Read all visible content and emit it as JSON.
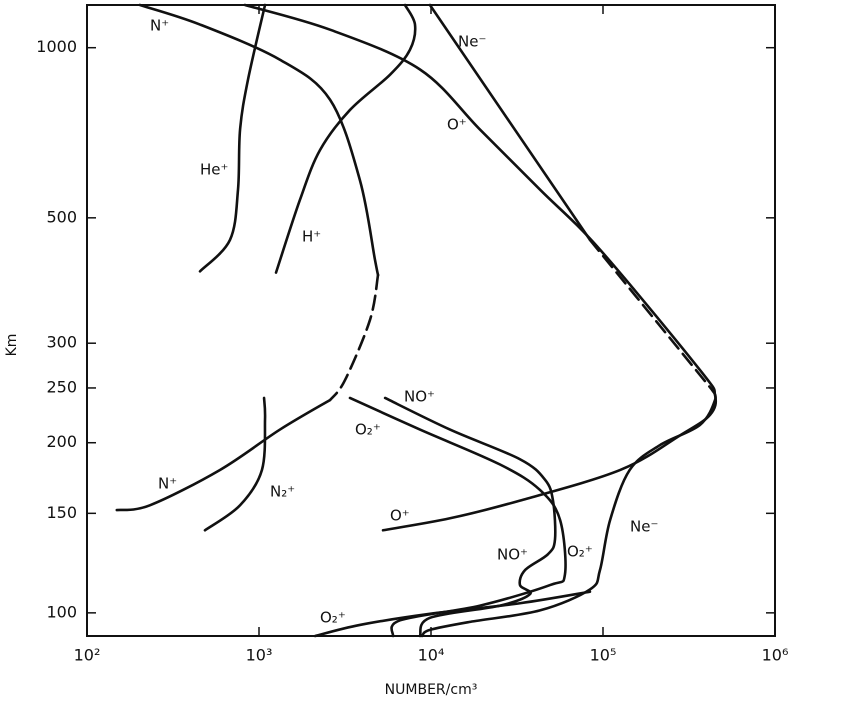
{
  "chart_data": {
    "type": "line",
    "x_label": "NUMBER/cm³",
    "y_label": "Km",
    "x_scale": "log",
    "y_scale": "log",
    "xlim": [
      100,
      1000000
    ],
    "ylim": [
      91,
      1190
    ],
    "xticks": [
      {
        "value": 100,
        "label": "10²"
      },
      {
        "value": 1000,
        "label": "10³"
      },
      {
        "value": 10000,
        "label": "10⁴"
      },
      {
        "value": 100000,
        "label": "10⁵"
      },
      {
        "value": 1000000,
        "label": "10⁶"
      }
    ],
    "yticks": [
      100,
      150,
      200,
      250,
      300,
      500,
      1000
    ],
    "color": "#111111",
    "series": [
      {
        "labels": [
          "He⁺"
        ],
        "x": [
          454,
          678,
          755,
          776,
          863,
          1084
        ],
        "y": [
          402,
          457,
          561,
          716,
          878,
          1190
        ]
      },
      {
        "labels": [
          "H⁺"
        ],
        "x": [
          1256,
          1730,
          2264,
          3380,
          5780,
          7550,
          8070,
          7060
        ],
        "y": [
          400,
          538,
          659,
          776,
          896,
          992,
          1099,
          1190
        ]
      },
      {
        "labels": [
          "N⁺"
        ],
        "x": [
          203,
          454,
          1324,
          2590,
          3860,
          4720,
          4920
        ],
        "y": [
          1190,
          1099,
          952,
          809,
          583,
          422,
          396
        ]
      },
      {
        "labels": [],
        "line_style": "dashed",
        "x": [
          4920,
          4420,
          3160,
          2590
        ],
        "y": [
          396,
          330,
          258,
          238
        ]
      },
      {
        "labels": [
          "N⁺"
        ],
        "x": [
          2590,
          1324,
          593,
          232,
          149
        ],
        "y": [
          238,
          211,
          179,
          155,
          152
        ]
      },
      {
        "labels": [
          "N₂⁺"
        ],
        "x": [
          485,
          776,
          1040,
          1084,
          1070
        ],
        "y": [
          140,
          155,
          179,
          220,
          240
        ]
      },
      {
        "labels": [
          "Ne⁻"
        ],
        "x": [
          9860,
          84000
        ],
        "y": [
          1190,
          457
        ]
      },
      {
        "labels": [],
        "line_style": "dashed",
        "x": [
          84000,
          431000
        ],
        "y": [
          457,
          248
        ]
      },
      {
        "labels": [
          "Ne⁻"
        ],
        "x": [
          431000,
          448000,
          366000,
          214000,
          143000,
          110000,
          96000,
          84000,
          43000,
          16900,
          9860,
          8870
        ],
        "y": [
          248,
          238,
          215,
          198,
          179,
          146,
          119,
          110,
          101,
          96.4,
          93.3,
          91
        ]
      },
      {
        "labels": [
          "O⁺",
          "O⁺"
        ],
        "x": [
          829,
          2590,
          8630,
          19300,
          43000,
          96200,
          366000,
          448000,
          419000,
          280000,
          126000,
          32900,
          12900,
          5260
        ],
        "y": [
          1190,
          1076,
          915,
          716,
          561,
          439,
          269,
          243,
          224,
          206,
          179,
          158,
          147,
          140
        ]
      },
      {
        "labels": [
          "NO⁺",
          "NO⁺"
        ],
        "x": [
          5410,
          12900,
          32900,
          46000,
          51200,
          52600,
          47900,
          35200,
          32900,
          37700,
          25200,
          9860,
          8630
        ],
        "y": [
          240,
          211,
          187,
          172,
          158,
          135,
          127,
          119,
          112,
          108,
          103,
          98,
          91
        ]
      },
      {
        "labels": [
          "O₂⁺",
          "O₂⁺"
        ],
        "x": [
          3380,
          8630,
          25200,
          43000,
          56300,
          60100,
          49200,
          19300,
          6610,
          6010
        ],
        "y": [
          240,
          211,
          183,
          165,
          146,
          117,
          112,
          103,
          97,
          91
        ]
      },
      {
        "labels": [
          "O₂⁺"
        ],
        "x": [
          2120,
          3860,
          9860,
          32900,
          84000
        ],
        "y": [
          91,
          95.2,
          99.6,
          104,
          109
        ]
      }
    ]
  }
}
